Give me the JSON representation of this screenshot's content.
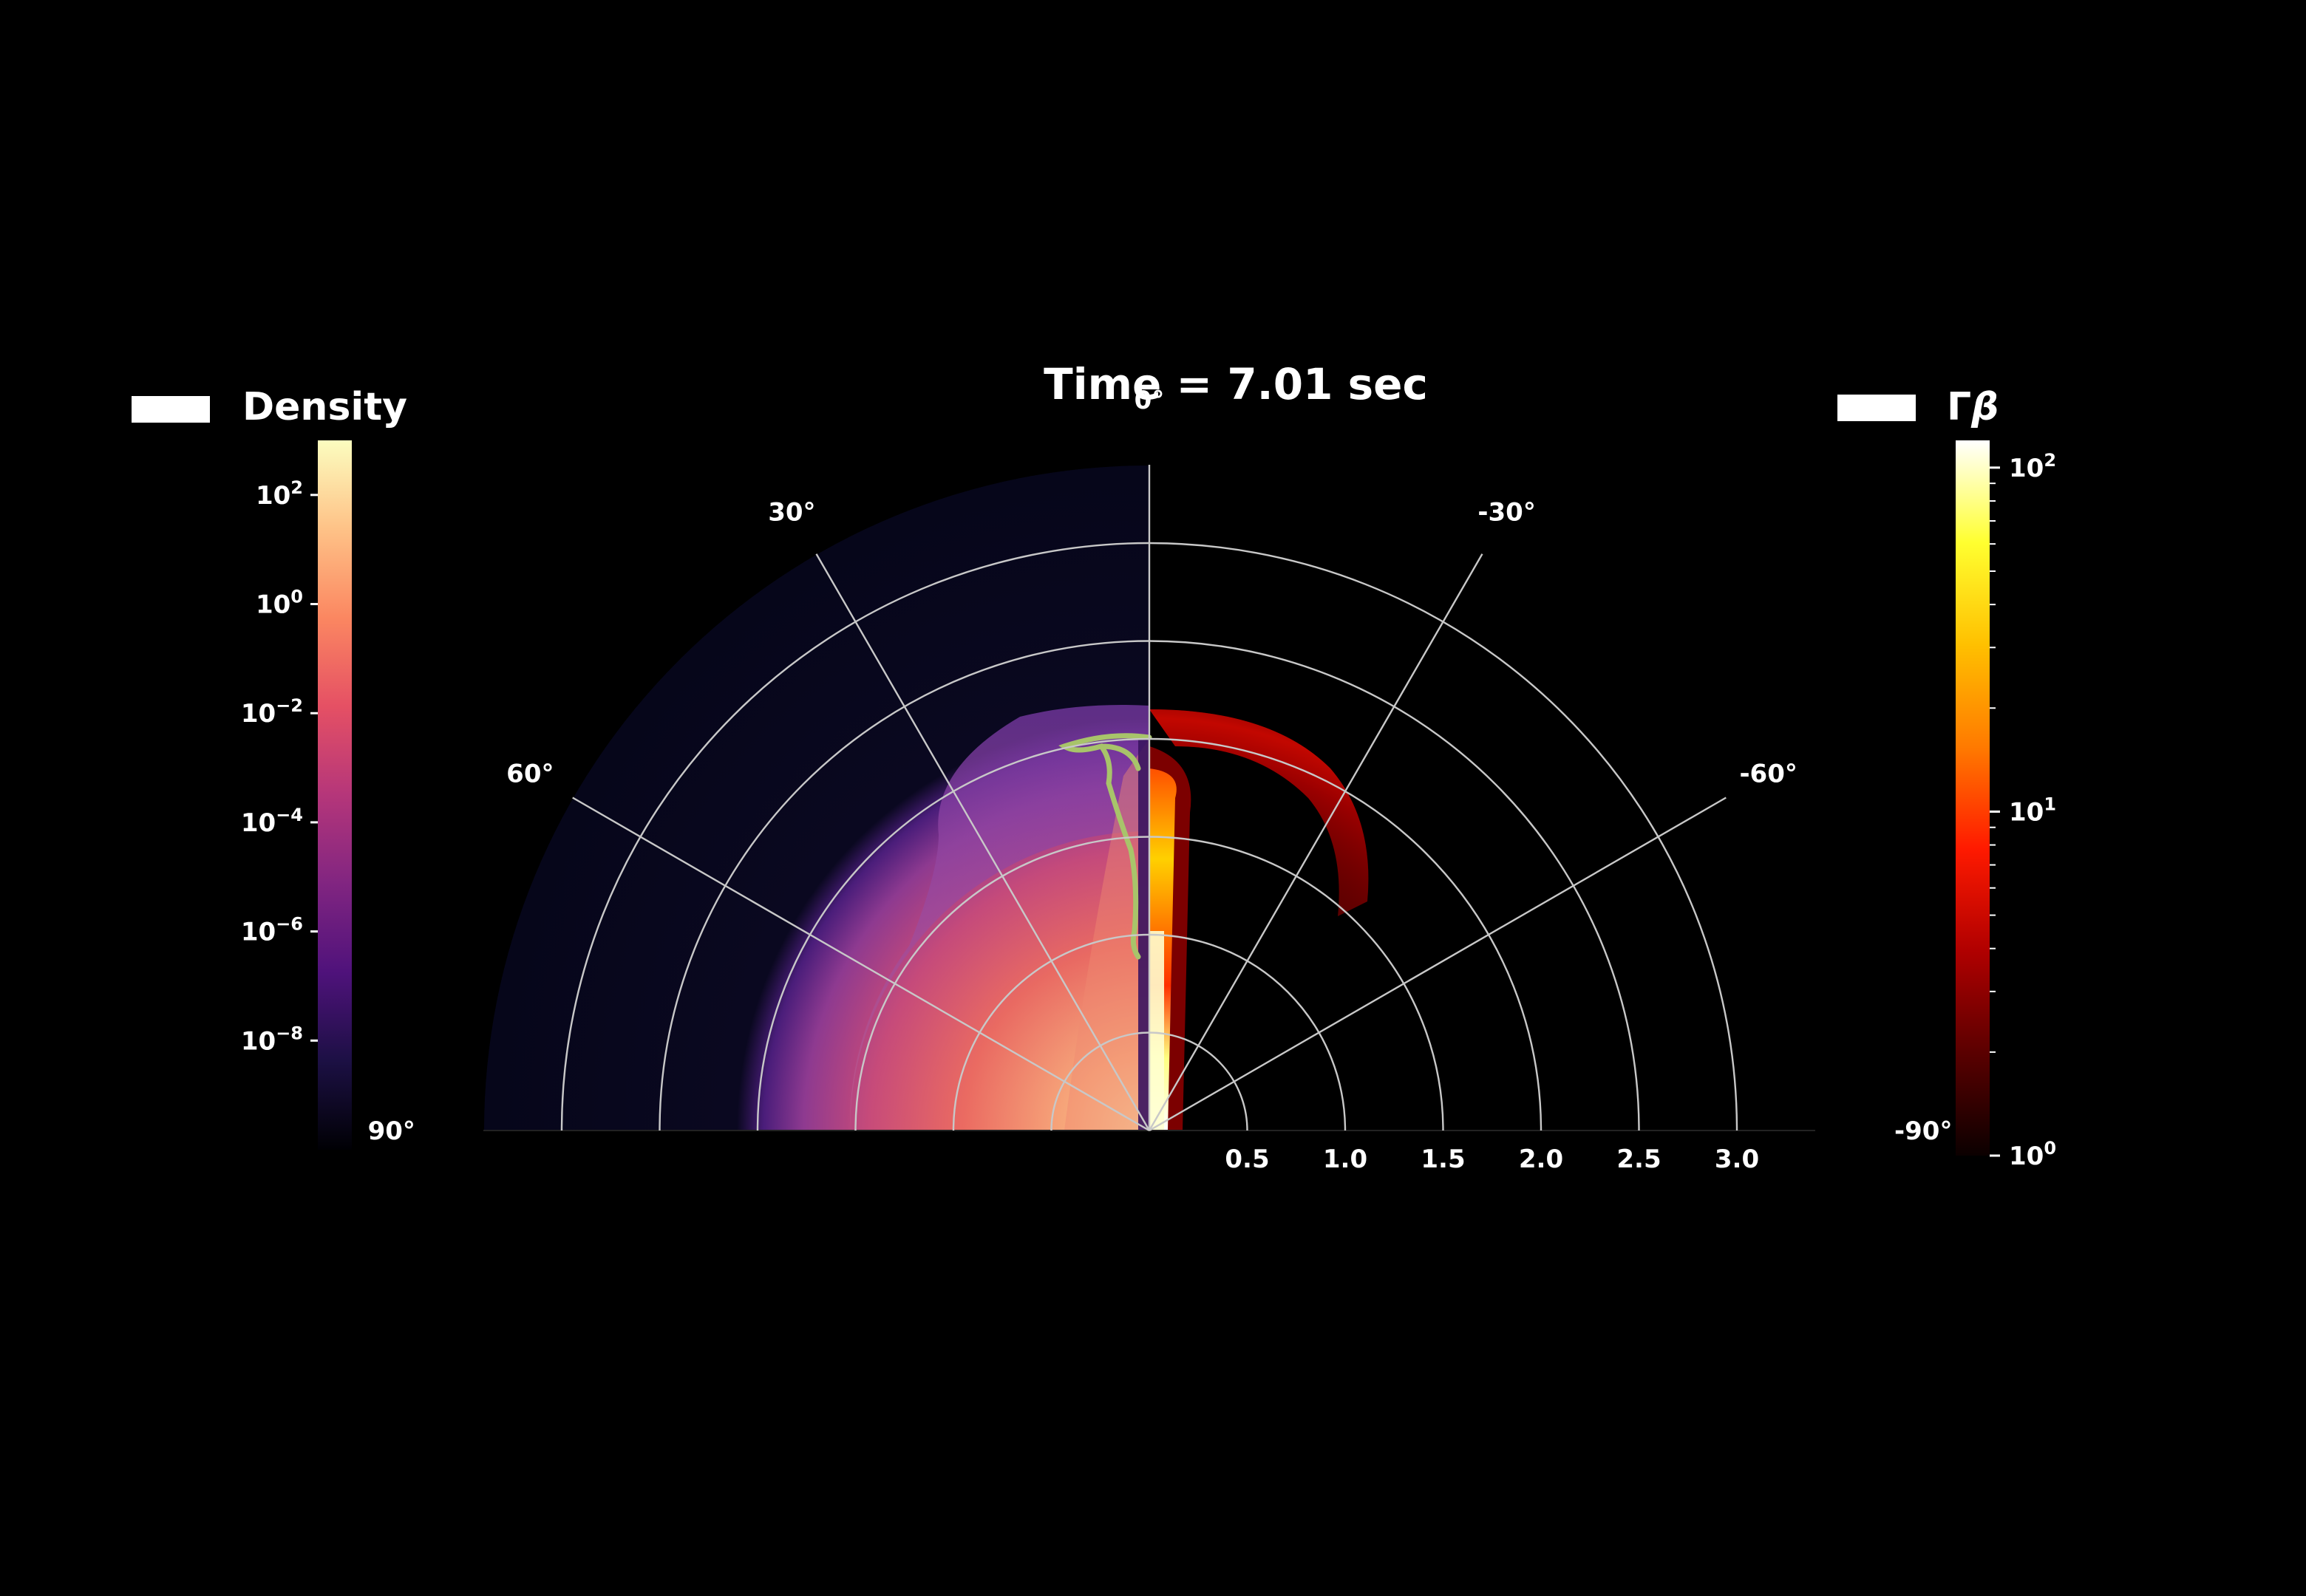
{
  "title": "Time = 7.01 sec",
  "colors": {
    "background": "#000000",
    "grid": "#c8c8c8",
    "contour": "#a8c46a"
  },
  "chart_data": {
    "type": "heatmap",
    "projection": "polar-half",
    "title": "Time = 7.01 sec",
    "radial_axis": {
      "ticks": [
        0.5,
        1.0,
        1.5,
        2.0,
        2.5,
        3.0
      ],
      "tick_labels": [
        "0.5",
        "1.0",
        "1.5",
        "2.0",
        "2.5",
        "3.0"
      ],
      "range": [
        0,
        3.4
      ]
    },
    "angular_axis": {
      "ticks": [
        90,
        60,
        30,
        0,
        -30,
        -60,
        -90
      ],
      "tick_labels": [
        "90°",
        "60°",
        "30°",
        "0°",
        "-30°",
        "-60°",
        "-90°"
      ],
      "range": [
        -90,
        90
      ]
    },
    "grid": true,
    "panels": [
      {
        "side": "left",
        "field": "Density",
        "colormap": "magma",
        "scale": "log"
      },
      {
        "side": "right",
        "field": "Γβ",
        "colormap": "hot",
        "scale": "log"
      }
    ],
    "colorbars": [
      {
        "side": "left",
        "label": "Density",
        "scale": "log",
        "range_exp": [
          -10,
          3
        ],
        "tick_exponents": [
          2,
          0,
          -2,
          -4,
          -6,
          -8
        ],
        "tick_labels": [
          {
            "base": "10",
            "exp": "2"
          },
          {
            "base": "10",
            "exp": "0"
          },
          {
            "base": "10",
            "exp": "−2"
          },
          {
            "base": "10",
            "exp": "−4"
          },
          {
            "base": "10",
            "exp": "−6"
          },
          {
            "base": "10",
            "exp": "−8"
          }
        ],
        "colors": [
          "#000004",
          "#1c1044",
          "#4f127b",
          "#812581",
          "#b5367a",
          "#e55064",
          "#fb8761",
          "#fec287",
          "#fcfdbf"
        ]
      },
      {
        "side": "right",
        "label_main": "Γ",
        "label_italic": "β",
        "scale": "log",
        "range": [
          1,
          120
        ],
        "ticks": [
          2,
          1,
          0
        ],
        "tick_labels": [
          {
            "base": "10",
            "exp": "2"
          },
          {
            "base": "10",
            "exp": "1"
          },
          {
            "base": "10",
            "exp": "0"
          }
        ],
        "colors": [
          "#0b0000",
          "#5a0000",
          "#b00000",
          "#ff1a00",
          "#ff7a00",
          "#ffc000",
          "#ffff30",
          "#ffffff"
        ]
      }
    ]
  }
}
